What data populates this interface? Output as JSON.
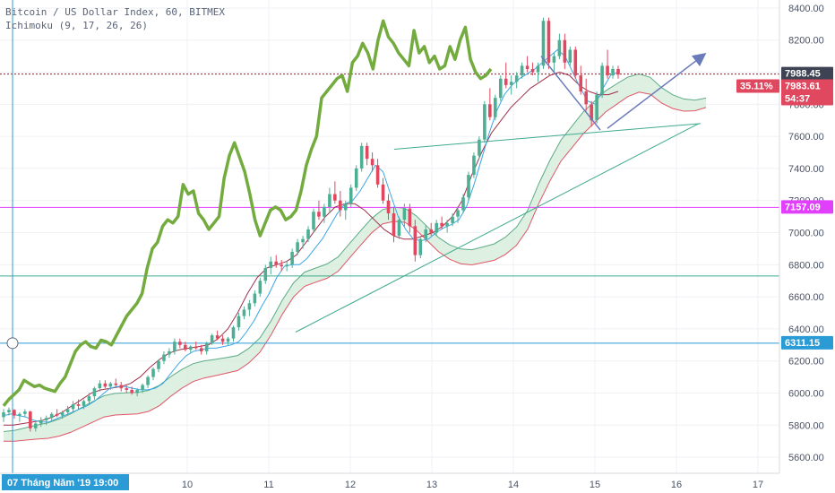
{
  "legend": {
    "title": "Bitcoin / US Dollar Index, 60, BITMEX",
    "indicator": "Ichimoku (9, 17, 26, 26)"
  },
  "colors": {
    "price_up": "#4caf93",
    "price_down": "#e0485f",
    "green_line": "#73ab3e",
    "blue_line": "#39a7e3",
    "maroon_line": "#a0304b",
    "cloud_up_edge": "#5cab87",
    "cloud_down_edge": "#e05566",
    "cloud_fill": "#d5ecd9",
    "cloud_fill_neg": "#f7cfd5",
    "teal_line": "#3faa8f",
    "blue_hline": "#2b9bd6",
    "magenta_line": "#e040fb",
    "arrow": "#6a7bb9",
    "current_price_line": "#8a1c2c"
  },
  "chart_data": {
    "type": "candlestick",
    "y_axis": {
      "min": 5500,
      "max": 8450,
      "ticks": [
        "8400.00",
        "8200.00",
        "8000.00",
        "7800.00",
        "7600.00",
        "7400.00",
        "7200.00",
        "7000.00",
        "6800.00",
        "6600.00",
        "6400.00",
        "6200.00",
        "6000.00",
        "5800.00",
        "5600.00"
      ]
    },
    "x_axis": {
      "ticks": [
        "10",
        "11",
        "12",
        "13",
        "14",
        "15",
        "16",
        "17"
      ],
      "cursor_label": "07 Tháng Năm '19   19:00"
    },
    "price_tags": [
      {
        "label": "7988.45",
        "value": 7988.45,
        "style": "dark"
      },
      {
        "label": "35.11%",
        "value": 7983.61,
        "style": "red-left"
      },
      {
        "label": "7983.61",
        "value": 7983.61,
        "style": "red"
      },
      {
        "label": "54:37",
        "value": 7850,
        "style": "red"
      },
      {
        "label": "7157.09",
        "value": 7157.09,
        "style": "magenta"
      },
      {
        "label": "6311.15",
        "value": 6311.15,
        "style": "blue"
      }
    ],
    "horizontal_lines": [
      {
        "value": 7988.45,
        "role": "current-price"
      },
      {
        "value": 7157.09,
        "role": "magenta-level"
      },
      {
        "value": 6730,
        "role": "teal-level"
      },
      {
        "value": 6311.15,
        "role": "blue-level"
      }
    ],
    "candles_ohlc": [
      [
        5850,
        5900,
        5820,
        5880
      ],
      [
        5880,
        5910,
        5860,
        5895
      ],
      [
        5895,
        5900,
        5840,
        5860
      ],
      [
        5860,
        5880,
        5820,
        5870
      ],
      [
        5870,
        5900,
        5850,
        5885
      ],
      [
        5885,
        5890,
        5760,
        5780
      ],
      [
        5780,
        5830,
        5760,
        5810
      ],
      [
        5810,
        5850,
        5790,
        5830
      ],
      [
        5830,
        5860,
        5800,
        5845
      ],
      [
        5845,
        5880,
        5830,
        5870
      ],
      [
        5870,
        5900,
        5850,
        5860
      ],
      [
        5860,
        5890,
        5840,
        5880
      ],
      [
        5880,
        5920,
        5860,
        5900
      ],
      [
        5900,
        5950,
        5880,
        5930
      ],
      [
        5930,
        5960,
        5900,
        5920
      ],
      [
        5920,
        5960,
        5900,
        5950
      ],
      [
        5950,
        6000,
        5930,
        5980
      ],
      [
        5980,
        6040,
        5960,
        6030
      ],
      [
        6030,
        6080,
        6010,
        6060
      ],
      [
        6060,
        6080,
        6030,
        6040
      ],
      [
        6040,
        6070,
        6020,
        6060
      ],
      [
        6060,
        6090,
        6040,
        6050
      ],
      [
        6050,
        6070,
        6010,
        6030
      ],
      [
        6030,
        6050,
        6000,
        6020
      ],
      [
        6020,
        6040,
        5990,
        6000
      ],
      [
        6000,
        6030,
        5980,
        6020
      ],
      [
        6020,
        6060,
        6000,
        6050
      ],
      [
        6050,
        6110,
        6030,
        6100
      ],
      [
        6100,
        6160,
        6080,
        6150
      ],
      [
        6150,
        6210,
        6130,
        6200
      ],
      [
        6200,
        6260,
        6180,
        6240
      ],
      [
        6240,
        6280,
        6220,
        6260
      ],
      [
        6260,
        6340,
        6240,
        6320
      ],
      [
        6320,
        6340,
        6280,
        6300
      ],
      [
        6300,
        6320,
        6260,
        6270
      ],
      [
        6270,
        6300,
        6250,
        6290
      ],
      [
        6290,
        6320,
        6270,
        6280
      ],
      [
        6280,
        6300,
        6240,
        6260
      ],
      [
        6260,
        6320,
        6240,
        6310
      ],
      [
        6310,
        6370,
        6300,
        6360
      ],
      [
        6360,
        6390,
        6330,
        6340
      ],
      [
        6340,
        6360,
        6300,
        6320
      ],
      [
        6320,
        6350,
        6300,
        6340
      ],
      [
        6340,
        6420,
        6320,
        6410
      ],
      [
        6410,
        6500,
        6390,
        6480
      ],
      [
        6480,
        6540,
        6460,
        6520
      ],
      [
        6520,
        6580,
        6480,
        6560
      ],
      [
        6560,
        6640,
        6540,
        6620
      ],
      [
        6620,
        6720,
        6600,
        6700
      ],
      [
        6700,
        6800,
        6680,
        6780
      ],
      [
        6780,
        6850,
        6740,
        6820
      ],
      [
        6820,
        6860,
        6780,
        6800
      ],
      [
        6800,
        6830,
        6760,
        6790
      ],
      [
        6790,
        6820,
        6760,
        6800
      ],
      [
        6800,
        6900,
        6780,
        6880
      ],
      [
        6880,
        6960,
        6860,
        6940
      ],
      [
        6940,
        6980,
        6900,
        6960
      ],
      [
        6960,
        7040,
        6940,
        7020
      ],
      [
        7020,
        7150,
        7000,
        7130
      ],
      [
        7130,
        7200,
        7080,
        7100
      ],
      [
        7100,
        7180,
        7060,
        7160
      ],
      [
        7160,
        7280,
        7120,
        7240
      ],
      [
        7240,
        7320,
        7180,
        7200
      ],
      [
        7200,
        7260,
        7100,
        7140
      ],
      [
        7140,
        7200,
        7080,
        7180
      ],
      [
        7180,
        7300,
        7160,
        7280
      ],
      [
        7280,
        7420,
        7260,
        7400
      ],
      [
        7400,
        7560,
        7380,
        7540
      ],
      [
        7540,
        7560,
        7420,
        7460
      ],
      [
        7460,
        7500,
        7380,
        7420
      ],
      [
        7420,
        7460,
        7280,
        7300
      ],
      [
        7300,
        7340,
        7180,
        7200
      ],
      [
        7200,
        7240,
        7080,
        7120
      ],
      [
        7120,
        7160,
        6940,
        6980
      ],
      [
        6980,
        7100,
        6960,
        7080
      ],
      [
        7080,
        7180,
        7040,
        7150
      ],
      [
        7150,
        7180,
        7000,
        7040
      ],
      [
        7040,
        7080,
        6820,
        6860
      ],
      [
        6860,
        6980,
        6840,
        6960
      ],
      [
        6960,
        7050,
        6940,
        7020
      ],
      [
        7020,
        7060,
        6980,
        7000
      ],
      [
        7000,
        7080,
        6980,
        7060
      ],
      [
        7060,
        7100,
        7020,
        7040
      ],
      [
        7040,
        7080,
        7000,
        7060
      ],
      [
        7060,
        7120,
        7040,
        7100
      ],
      [
        7100,
        7160,
        7060,
        7140
      ],
      [
        7140,
        7240,
        7120,
        7220
      ],
      [
        7220,
        7380,
        7200,
        7360
      ],
      [
        7360,
        7500,
        7340,
        7480
      ],
      [
        7480,
        7600,
        7460,
        7580
      ],
      [
        7580,
        7820,
        7560,
        7800
      ],
      [
        7800,
        7900,
        7700,
        7720
      ],
      [
        7720,
        7860,
        7700,
        7840
      ],
      [
        7840,
        7980,
        7820,
        7960
      ],
      [
        7960,
        8060,
        7900,
        7920
      ],
      [
        7920,
        7980,
        7860,
        7940
      ],
      [
        7940,
        8000,
        7900,
        7980
      ],
      [
        7980,
        8060,
        7960,
        8040
      ],
      [
        8040,
        8100,
        8000,
        8020
      ],
      [
        8020,
        8060,
        7980,
        8000
      ],
      [
        8000,
        8060,
        7940,
        8040
      ],
      [
        8040,
        8340,
        8020,
        8320
      ],
      [
        8320,
        8340,
        8020,
        8060
      ],
      [
        8060,
        8120,
        8000,
        8100
      ],
      [
        8100,
        8240,
        8080,
        8200
      ],
      [
        8200,
        8240,
        8020,
        8060
      ],
      [
        8060,
        8160,
        8040,
        8140
      ],
      [
        8140,
        8160,
        7960,
        7980
      ],
      [
        7980,
        8040,
        7860,
        7880
      ],
      [
        7880,
        7960,
        7760,
        7800
      ],
      [
        7800,
        7820,
        7660,
        7700
      ],
      [
        7700,
        7880,
        7680,
        7860
      ],
      [
        7860,
        8060,
        7840,
        8040
      ],
      [
        8040,
        8140,
        7960,
        7980
      ],
      [
        7980,
        8040,
        7960,
        8020
      ],
      [
        8020,
        8040,
        7960,
        7985
      ]
    ],
    "green_line": [
      5920,
      5960,
      5990,
      6020,
      6080,
      6060,
      6040,
      6050,
      6030,
      6020,
      6010,
      6060,
      6100,
      6180,
      6260,
      6300,
      6320,
      6290,
      6280,
      6330,
      6320,
      6300,
      6360,
      6420,
      6480,
      6520,
      6560,
      6620,
      6780,
      6900,
      6940,
      7040,
      7080,
      7060,
      7100,
      7300,
      7240,
      7260,
      7120,
      7080,
      7020,
      7060,
      7100,
      7340,
      7480,
      7560,
      7470,
      7380,
      7240,
      7080,
      6980,
      7060,
      7140,
      7160,
      7140,
      7080,
      7100,
      7140,
      7260,
      7420,
      7520,
      7600,
      7840,
      7880,
      7920,
      7960,
      7980,
      7880,
      8060,
      8100,
      8180,
      8120,
      8020,
      8200,
      8320,
      8220,
      8180,
      8120,
      8080,
      8040,
      8260,
      8120,
      8160,
      8060,
      8100,
      8020,
      8040,
      8160,
      8080,
      8200,
      8280,
      8080,
      8000,
      7960,
      7980,
      8020
    ],
    "tenkan": [
      5860,
      5870,
      5860,
      5850,
      5830,
      5820,
      5820,
      5840,
      5860,
      5880,
      5900,
      5920,
      5950,
      5990,
      6030,
      6040,
      6040,
      6030,
      6020,
      6020,
      6030,
      6060,
      6120,
      6180,
      6230,
      6260,
      6270,
      6280,
      6280,
      6290,
      6300,
      6320,
      6380,
      6450,
      6540,
      6620,
      6720,
      6790,
      6800,
      6800,
      6840,
      6900,
      6960,
      7040,
      7120,
      7180,
      7200,
      7260,
      7340,
      7420,
      7380,
      7240,
      7100,
      7020,
      6960,
      6950,
      6960,
      7000,
      7030,
      7050,
      7080,
      7160,
      7300,
      7460,
      7620,
      7760,
      7860,
      7920,
      7960,
      7990,
      8020,
      8060,
      8100,
      8140,
      8100,
      8000,
      7900,
      7820,
      7800,
      7900,
      7980,
      8000
    ],
    "kijun": [
      5800,
      5800,
      5810,
      5820,
      5830,
      5850,
      5880,
      5920,
      5960,
      6000,
      6020,
      6030,
      6040,
      6060,
      6100,
      6160,
      6210,
      6250,
      6270,
      6280,
      6290,
      6300,
      6340,
      6400,
      6500,
      6620,
      6720,
      6780,
      6800,
      6820,
      6860,
      6940,
      7020,
      7100,
      7160,
      7180,
      7180,
      7140,
      7080,
      7020,
      6980,
      6960,
      6960,
      6980,
      7000,
      7040,
      7100,
      7200,
      7360,
      7500,
      7620,
      7700,
      7780,
      7840,
      7900,
      7940,
      7980,
      8000,
      7980,
      7920,
      7880,
      7860,
      7860,
      7880
    ]
  }
}
